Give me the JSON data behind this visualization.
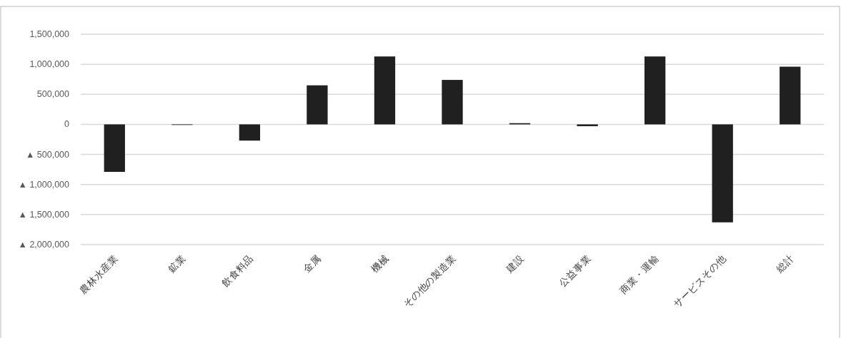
{
  "chart_data": {
    "type": "bar",
    "categories": [
      "農林水産業",
      "鉱業",
      "飲食料品",
      "金属",
      "機械",
      "その他の製造業",
      "建設",
      "公益事業",
      "商業・運輸",
      "サービスその他",
      "総計"
    ],
    "values": [
      -790000,
      -10000,
      -270000,
      650000,
      1130000,
      740000,
      20000,
      -30000,
      1130000,
      -1630000,
      960000
    ],
    "color": "#202020",
    "ylim": [
      -2000000,
      1500000
    ],
    "yticks": [
      {
        "value": -2000000,
        "label": "▲ 2,000,000"
      },
      {
        "value": -1500000,
        "label": "▲ 1,500,000"
      },
      {
        "value": -1000000,
        "label": "▲ 1,000,000"
      },
      {
        "value": -500000,
        "label": "▲ 500,000"
      },
      0,
      {
        "value": 500000,
        "label": "500,000"
      },
      {
        "value": 1000000,
        "label": "1,000,000"
      },
      {
        "value": 1500000,
        "label": "1,500,000"
      }
    ],
    "grid": "y"
  }
}
